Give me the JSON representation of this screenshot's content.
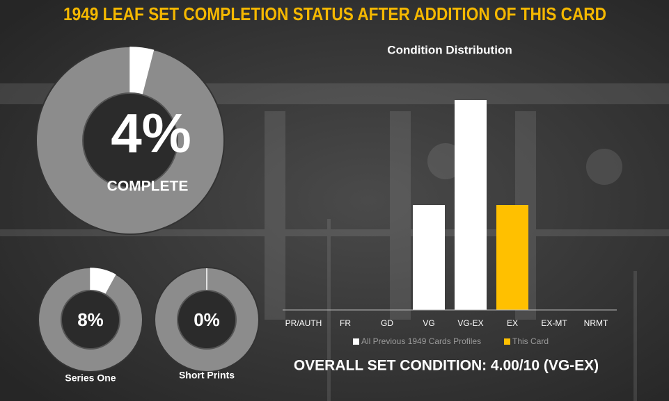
{
  "title": "1949 LEAF SET COMPLETION STATUS AFTER ADDITION OF THIS CARD",
  "chart_data": [
    {
      "type": "donut",
      "value": 4,
      "value_label": "4%",
      "label": "COMPLETE"
    },
    {
      "type": "donut",
      "value": 8,
      "value_label": "8%",
      "label": "Series One"
    },
    {
      "type": "donut",
      "value": 0,
      "value_label": "0%",
      "label": "Short Prints"
    },
    {
      "type": "bar",
      "title": "Condition Distribution",
      "categories": [
        "PR/AUTH",
        "FR",
        "GD",
        "VG",
        "VG-EX",
        "EX",
        "EX-MT",
        "NRMT"
      ],
      "series": [
        {
          "name": "All Previous 1949 Cards Profiles",
          "color": "#ffffff",
          "values": [
            0,
            0,
            0,
            1,
            2,
            0,
            0,
            0
          ]
        },
        {
          "name": "This Card",
          "color": "#ffc000",
          "values": [
            0,
            0,
            0,
            0,
            0,
            1,
            0,
            0
          ]
        }
      ],
      "ylim": [
        0,
        2
      ],
      "legend": "bottom",
      "annotation": "OVERALL SET CONDITION: 4.00/10 (VG-EX)"
    }
  ]
}
